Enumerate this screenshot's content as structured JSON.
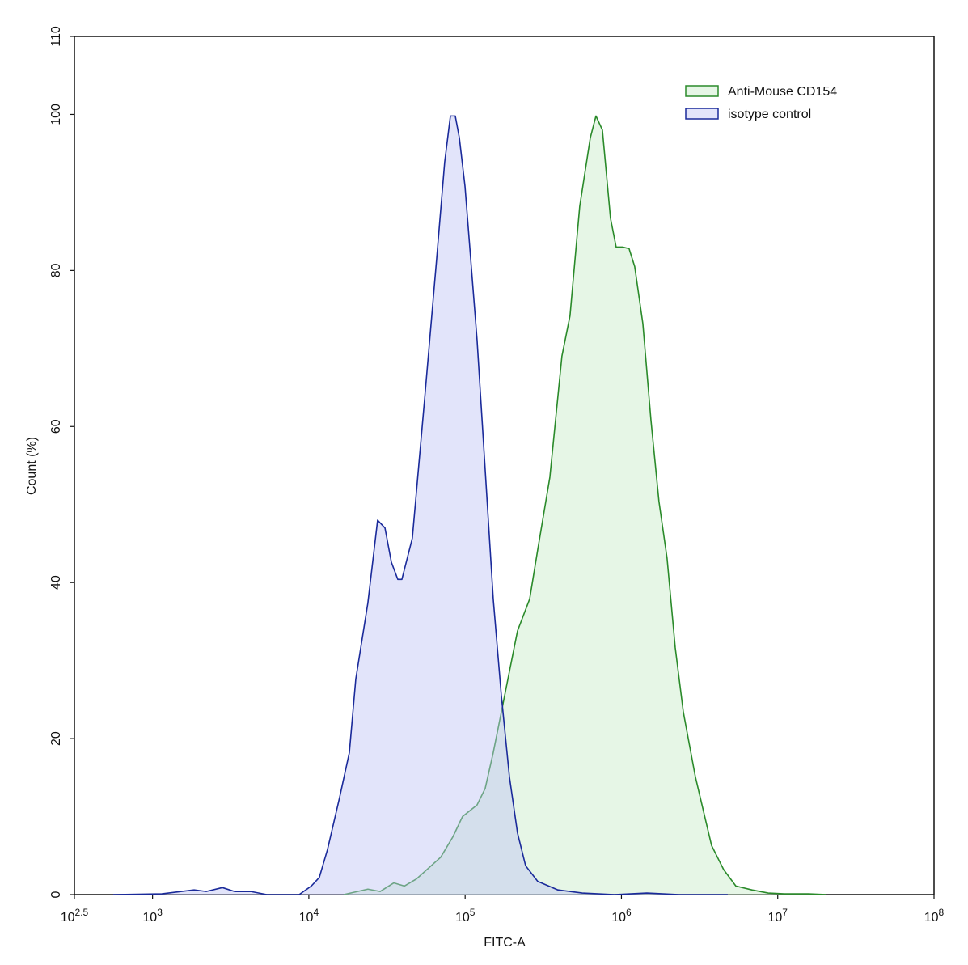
{
  "chart_data": {
    "type": "histogram-overlay",
    "x_label": "FITC-A",
    "y_label": "Count  (%)",
    "xscale": "log",
    "xlim": [
      316.2278,
      100000000
    ],
    "xticks": [
      {
        "value": 316.2278,
        "label": "10",
        "exponent": "2.5"
      },
      {
        "value": 1000,
        "label": "10",
        "exponent": "3"
      },
      {
        "value": 10000,
        "label": "10",
        "exponent": "4"
      },
      {
        "value": 100000,
        "label": "10",
        "exponent": "5"
      },
      {
        "value": 1000000,
        "label": "10",
        "exponent": "6"
      },
      {
        "value": 10000000,
        "label": "10",
        "exponent": "7"
      },
      {
        "value": 100000000,
        "label": "10",
        "exponent": "8"
      }
    ],
    "ylim": [
      0,
      110
    ],
    "yticks": [
      0,
      20,
      40,
      60,
      80,
      100,
      110
    ],
    "legend": "upper-right",
    "series": [
      {
        "name": "Anti-Mouse CD154",
        "color": "#2a8a2a",
        "fill": "rgba(200,235,200,0.45)",
        "x": [
          16710,
          23860,
          28560,
          34930,
          40830,
          48780,
          58360,
          69810,
          83420,
          96180,
          119200,
          134300,
          151300,
          170500,
          192000,
          216300,
          258800,
          291300,
          348400,
          416000,
          468800,
          540800,
          632100,
          687100,
          755500,
          851100,
          924900,
          1018000,
          1119000,
          1216000,
          1371000,
          1545000,
          1738000,
          1959000,
          2208000,
          2489000,
          2972000,
          3773000,
          4510000,
          5395000,
          6839000,
          8682000,
          11020000,
          15740000,
          20460000
        ],
        "values": [
          0,
          0.7,
          0.4,
          1.5,
          1.1,
          2,
          3.4,
          4.8,
          7.4,
          10,
          11.5,
          13.6,
          18.2,
          23.4,
          28.6,
          33.8,
          37.9,
          44.2,
          53.5,
          69,
          74.2,
          88.2,
          97,
          99.8,
          98,
          86.7,
          83,
          83,
          82.8,
          80.5,
          73.2,
          60.8,
          50.4,
          43.1,
          31.7,
          23.4,
          15.1,
          6.3,
          3.2,
          1.1,
          0.6,
          0.2,
          0.1,
          0.1,
          0
        ]
      },
      {
        "name": "isotype control",
        "color": "#1a2a9a",
        "fill": "rgba(190,195,245,0.45)",
        "x": [
          560,
          1146,
          1845,
          2205,
          2798,
          3345,
          4244,
          5385,
          8670,
          10370,
          11670,
          13170,
          15750,
          18160,
          19960,
          23860,
          27540,
          30690,
          33740,
          37080,
          39370,
          45940,
          54930,
          65730,
          73980,
          80490,
          86470,
          91820,
          99800,
          119200,
          134300,
          151300,
          170500,
          192000,
          216300,
          243800,
          291300,
          392400,
          561200,
          903400,
          1455000,
          2344000,
          4789000
        ],
        "values": [
          0,
          0.1,
          0.6,
          0.4,
          0.9,
          0.4,
          0.4,
          0,
          0,
          1.1,
          2.2,
          5.8,
          12.5,
          18.2,
          27.6,
          37.4,
          48,
          47,
          42.6,
          40.4,
          40.4,
          45.7,
          63.3,
          81.5,
          93.9,
          99.8,
          99.8,
          97,
          90.8,
          71.1,
          54.5,
          37.9,
          25.5,
          15.1,
          7.9,
          3.7,
          1.7,
          0.6,
          0.2,
          0,
          0.2,
          0,
          0
        ]
      }
    ]
  }
}
